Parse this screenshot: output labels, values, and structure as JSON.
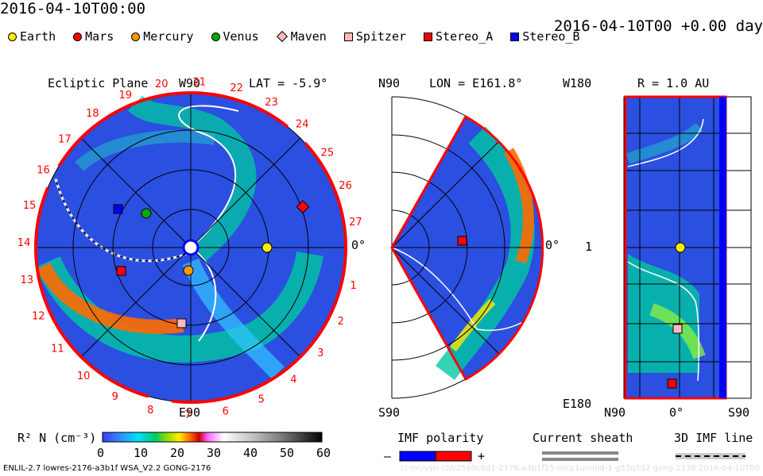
{
  "header": {
    "title_left": "2016-04-10T00:00",
    "title_right": "2016-04-10T00 +0.00 day"
  },
  "legend": [
    {
      "label": "Earth",
      "shape": "circle",
      "color": "#ffee00",
      "icon": "earth-marker-icon"
    },
    {
      "label": "Mars",
      "shape": "circle",
      "color": "#ff0000",
      "icon": "mars-marker-icon"
    },
    {
      "label": "Mercury",
      "shape": "circle",
      "color": "#ff9900",
      "icon": "mercury-marker-icon"
    },
    {
      "label": "Venus",
      "shape": "circle",
      "color": "#00aa00",
      "icon": "venus-marker-icon"
    },
    {
      "label": "Maven",
      "shape": "diamond",
      "color": "#ffbbbb",
      "icon": "maven-marker-icon"
    },
    {
      "label": "Spitzer",
      "shape": "square",
      "color": "#ffbbbb",
      "icon": "spitzer-marker-icon"
    },
    {
      "label": "Stereo_A",
      "shape": "square",
      "color": "#ff0000",
      "icon": "stereo-a-marker-icon"
    },
    {
      "label": "Stereo_B",
      "shape": "square",
      "color": "#0000ff",
      "icon": "stereo-b-marker-icon"
    }
  ],
  "panels": {
    "ecliptic": {
      "title": "Ecliptic Plane",
      "lat": "LAT = -5.9°",
      "top_label": "W90",
      "bottom_label": "E90",
      "right_label": "0°",
      "tick_numbers": [
        "1",
        "2",
        "3",
        "4",
        "5",
        "6",
        "7",
        "8",
        "9",
        "10",
        "11",
        "12",
        "13",
        "14",
        "15",
        "16",
        "17",
        "18",
        "19",
        "20",
        "21",
        "22",
        "23",
        "24",
        "25",
        "26",
        "27"
      ]
    },
    "meridional": {
      "title": "LON = E161.8°",
      "top_label": "N90",
      "bottom_label": "S90",
      "right_label": "0°"
    },
    "radial": {
      "title": "R = 1.0 AU",
      "top_label": "W180",
      "mid_label": "1",
      "bottom_label": "E180",
      "x_labels": [
        "N90",
        "0°",
        "S90"
      ]
    }
  },
  "colorbar": {
    "label": "R² N (cm⁻³)",
    "ticks": [
      "0",
      "10",
      "20",
      "30",
      "40",
      "50",
      "60"
    ]
  },
  "imf": {
    "title": "IMF polarity",
    "minus": "–",
    "plus": "+",
    "neg_color": "#0000ff",
    "pos_color": "#ff0000"
  },
  "sheath": {
    "title": "Current sheath"
  },
  "imf3d": {
    "title": "3D IMF line"
  },
  "footer": "ENLIL-2.7 lowres-2176-a3b1f WSA_V2.2 GONG-2176",
  "watermark": "ccmc/vstr-cld/2560c0d1-2176-a3b1f15-mcp1umnld-1 g53q5d2 gong-2176 2016-04-10T00"
}
